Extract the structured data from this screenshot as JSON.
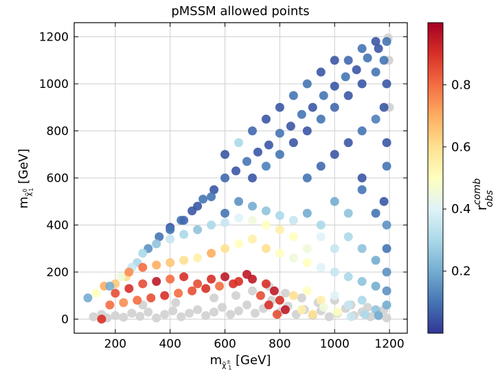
{
  "chart_data": {
    "type": "scatter",
    "title": "pMSSM allowed points",
    "xlabel": {
      "base": "m",
      "sub": "χ̃",
      "sub_sup": "±",
      "sub_sub": "1",
      "unit": " [GeV]"
    },
    "ylabel": {
      "base": "m",
      "sub": "χ̃",
      "sub_sup": "0",
      "sub_sub": "1",
      "unit": " [GeV]"
    },
    "xlim": [
      50,
      1265
    ],
    "ylim": [
      -60,
      1260
    ],
    "xticks": [
      200,
      400,
      600,
      800,
      1000,
      1200
    ],
    "yticks": [
      0,
      200,
      400,
      600,
      800,
      1000,
      1200
    ],
    "grid": true,
    "colorbar": {
      "label": {
        "base": "r",
        "sup": "comb",
        "sub": "obs"
      },
      "range": [
        0,
        1
      ],
      "ticks": [
        0.2,
        0.4,
        0.6,
        0.8
      ],
      "tick_labels": [
        "0.2",
        "0.4",
        "0.6",
        "0.8"
      ],
      "colormap": "RdYlBu_r",
      "colors": [
        "#313695",
        "#4575b4",
        "#74add1",
        "#abd9e9",
        "#e0f3f8",
        "#ffffbf",
        "#fee090",
        "#fdae61",
        "#f46d43",
        "#d73027",
        "#a50026"
      ]
    },
    "excluded_color": "#d3d3d3",
    "series": [
      {
        "kind": "excluded_points",
        "color": "#d3d3d3",
        "points": [
          [
            120,
            10
          ],
          [
            150,
            20
          ],
          [
            170,
            5
          ],
          [
            200,
            15
          ],
          [
            230,
            8
          ],
          [
            260,
            25
          ],
          [
            290,
            12
          ],
          [
            320,
            30
          ],
          [
            350,
            5
          ],
          [
            380,
            20
          ],
          [
            410,
            35
          ],
          [
            440,
            10
          ],
          [
            470,
            25
          ],
          [
            500,
            40
          ],
          [
            530,
            15
          ],
          [
            560,
            30
          ],
          [
            590,
            50
          ],
          [
            620,
            20
          ],
          [
            650,
            35
          ],
          [
            680,
            60
          ],
          [
            710,
            25
          ],
          [
            740,
            45
          ],
          [
            770,
            80
          ],
          [
            800,
            30
          ],
          [
            830,
            55
          ],
          [
            860,
            20
          ],
          [
            890,
            40
          ],
          [
            920,
            15
          ],
          [
            950,
            35
          ],
          [
            980,
            10
          ],
          [
            1010,
            25
          ],
          [
            1040,
            45
          ],
          [
            1070,
            15
          ],
          [
            1100,
            30
          ],
          [
            1130,
            10
          ],
          [
            1160,
            20
          ],
          [
            1190,
            5
          ],
          [
            300,
            60
          ],
          [
            420,
            70
          ],
          [
            560,
            90
          ],
          [
            640,
            100
          ],
          [
            700,
            120
          ],
          [
            760,
            140
          ],
          [
            820,
            110
          ],
          [
            880,
            90
          ],
          [
            940,
            70
          ],
          [
            1000,
            80
          ],
          [
            1060,
            60
          ],
          [
            1120,
            50
          ],
          [
            1180,
            40
          ],
          [
            1195,
            1195
          ],
          [
            1200,
            900
          ],
          [
            1198,
            1100
          ]
        ]
      },
      {
        "kind": "colored_points",
        "points": [
          [
            100,
            90,
            0.2
          ],
          [
            130,
            110,
            0.5
          ],
          [
            160,
            140,
            0.7
          ],
          [
            200,
            150,
            0.65
          ],
          [
            240,
            180,
            0.6
          ],
          [
            280,
            240,
            0.3
          ],
          [
            320,
            300,
            0.15
          ],
          [
            360,
            350,
            0.1
          ],
          [
            400,
            390,
            0.05
          ],
          [
            440,
            420,
            0.1
          ],
          [
            480,
            460,
            0.05
          ],
          [
            520,
            510,
            0.1
          ],
          [
            560,
            550,
            0.05
          ],
          [
            600,
            600,
            0.08
          ],
          [
            640,
            630,
            0.05
          ],
          [
            680,
            670,
            0.1
          ],
          [
            720,
            710,
            0.05
          ],
          [
            760,
            740,
            0.05
          ],
          [
            800,
            790,
            0.1
          ],
          [
            840,
            820,
            0.05
          ],
          [
            880,
            870,
            0.1
          ],
          [
            920,
            900,
            0.05
          ],
          [
            960,
            950,
            0.1
          ],
          [
            1000,
            990,
            0.05
          ],
          [
            1040,
            1030,
            0.1
          ],
          [
            1080,
            1060,
            0.05
          ],
          [
            1120,
            1110,
            0.1
          ],
          [
            1160,
            1150,
            0.05
          ],
          [
            1190,
            1180,
            0.1
          ],
          [
            600,
            700,
            0.05
          ],
          [
            700,
            800,
            0.08
          ],
          [
            800,
            900,
            0.05
          ],
          [
            900,
            1000,
            0.1
          ],
          [
            1000,
            1100,
            0.05
          ],
          [
            1100,
            1150,
            0.1
          ],
          [
            650,
            750,
            0.3
          ],
          [
            750,
            850,
            0.05
          ],
          [
            850,
            950,
            0.1
          ],
          [
            950,
            1050,
            0.05
          ],
          [
            1050,
            1100,
            0.08
          ],
          [
            1150,
            1180,
            0.05
          ],
          [
            700,
            600,
            0.05
          ],
          [
            800,
            700,
            0.1
          ],
          [
            900,
            800,
            0.05
          ],
          [
            1000,
            900,
            0.08
          ],
          [
            1100,
            1000,
            0.05
          ],
          [
            1180,
            1100,
            0.1
          ],
          [
            750,
            650,
            0.12
          ],
          [
            850,
            750,
            0.05
          ],
          [
            950,
            850,
            0.1
          ],
          [
            1050,
            950,
            0.05
          ],
          [
            1150,
            1050,
            0.1
          ],
          [
            1190,
            1000,
            0.05
          ],
          [
            900,
            600,
            0.1
          ],
          [
            1000,
            700,
            0.05
          ],
          [
            1100,
            800,
            0.1
          ],
          [
            1180,
            900,
            0.05
          ],
          [
            950,
            650,
            0.08
          ],
          [
            1050,
            750,
            0.05
          ],
          [
            1150,
            850,
            0.12
          ],
          [
            1190,
            750,
            0.05
          ],
          [
            1190,
            650,
            0.1
          ],
          [
            1100,
            600,
            0.05
          ],
          [
            1000,
            500,
            0.2
          ],
          [
            1100,
            550,
            0.1
          ],
          [
            1180,
            500,
            0.05
          ],
          [
            1050,
            450,
            0.25
          ],
          [
            1150,
            450,
            0.1
          ],
          [
            1190,
            400,
            0.15
          ],
          [
            950,
            400,
            0.3
          ],
          [
            900,
            450,
            0.2
          ],
          [
            850,
            420,
            0.35
          ],
          [
            800,
            440,
            0.3
          ],
          [
            750,
            460,
            0.25
          ],
          [
            700,
            480,
            0.2
          ],
          [
            650,
            500,
            0.15
          ],
          [
            600,
            450,
            0.1
          ],
          [
            500,
            480,
            0.05
          ],
          [
            550,
            520,
            0.1
          ],
          [
            450,
            420,
            0.08
          ],
          [
            400,
            380,
            0.1
          ],
          [
            350,
            320,
            0.25
          ],
          [
            300,
            280,
            0.3
          ],
          [
            260,
            220,
            0.35
          ],
          [
            220,
            180,
            0.45
          ],
          [
            180,
            140,
            0.2
          ],
          [
            250,
            200,
            0.75
          ],
          [
            300,
            220,
            0.8
          ],
          [
            350,
            230,
            0.7
          ],
          [
            400,
            240,
            0.65
          ],
          [
            450,
            250,
            0.6
          ],
          [
            500,
            260,
            0.55
          ],
          [
            550,
            280,
            0.7
          ],
          [
            600,
            300,
            0.6
          ],
          [
            650,
            320,
            0.5
          ],
          [
            700,
            340,
            0.55
          ],
          [
            750,
            300,
            0.6
          ],
          [
            800,
            280,
            0.5
          ],
          [
            850,
            260,
            0.45
          ],
          [
            900,
            240,
            0.5
          ],
          [
            950,
            220,
            0.4
          ],
          [
            1000,
            200,
            0.35
          ],
          [
            1050,
            180,
            0.3
          ],
          [
            1100,
            160,
            0.25
          ],
          [
            1150,
            140,
            0.2
          ],
          [
            1190,
            120,
            0.15
          ],
          [
            200,
            110,
            0.85
          ],
          [
            250,
            130,
            0.9
          ],
          [
            300,
            150,
            0.85
          ],
          [
            350,
            160,
            0.95
          ],
          [
            400,
            170,
            0.8
          ],
          [
            450,
            180,
            0.9
          ],
          [
            500,
            150,
            0.85
          ],
          [
            550,
            170,
            0.9
          ],
          [
            600,
            180,
            0.95
          ],
          [
            650,
            160,
            0.9
          ],
          [
            700,
            170,
            0.95
          ],
          [
            750,
            150,
            0.9
          ],
          [
            780,
            120,
            0.95
          ],
          [
            800,
            80,
            0.9
          ],
          [
            820,
            40,
            0.95
          ],
          [
            790,
            20,
            0.85
          ],
          [
            760,
            60,
            0.9
          ],
          [
            730,
            100,
            0.85
          ],
          [
            850,
            100,
            0.6
          ],
          [
            900,
            120,
            0.5
          ],
          [
            950,
            80,
            0.55
          ],
          [
            1000,
            100,
            0.4
          ],
          [
            1050,
            60,
            0.35
          ],
          [
            1100,
            80,
            0.3
          ],
          [
            1150,
            40,
            0.25
          ],
          [
            1190,
            60,
            0.2
          ],
          [
            880,
            40,
            0.55
          ],
          [
            920,
            20,
            0.6
          ],
          [
            960,
            50,
            0.45
          ],
          [
            1010,
            30,
            0.5
          ],
          [
            1060,
            10,
            0.35
          ],
          [
            1110,
            20,
            0.3
          ],
          [
            1160,
            15,
            0.2
          ],
          [
            150,
            0,
            0.9
          ],
          [
            180,
            60,
            0.8
          ],
          [
            230,
            70,
            0.75
          ],
          [
            280,
            80,
            0.8
          ],
          [
            330,
            90,
            0.85
          ],
          [
            380,
            100,
            0.9
          ],
          [
            430,
            110,
            0.8
          ],
          [
            480,
            120,
            0.85
          ],
          [
            530,
            130,
            0.9
          ],
          [
            580,
            140,
            0.8
          ],
          [
            630,
            150,
            0.9
          ],
          [
            680,
            190,
            0.95
          ],
          [
            1190,
            300,
            0.1
          ],
          [
            1190,
            200,
            0.15
          ],
          [
            1150,
            250,
            0.2
          ],
          [
            1100,
            300,
            0.25
          ],
          [
            1050,
            350,
            0.3
          ],
          [
            1000,
            300,
            0.35
          ],
          [
            950,
            350,
            0.4
          ],
          [
            900,
            300,
            0.45
          ],
          [
            850,
            350,
            0.5
          ],
          [
            800,
            380,
            0.55
          ],
          [
            750,
            400,
            0.5
          ],
          [
            700,
            420,
            0.45
          ],
          [
            650,
            430,
            0.4
          ],
          [
            600,
            410,
            0.35
          ],
          [
            550,
            400,
            0.3
          ],
          [
            500,
            380,
            0.25
          ],
          [
            450,
            360,
            0.3
          ],
          [
            400,
            340,
            0.35
          ]
        ]
      }
    ]
  }
}
